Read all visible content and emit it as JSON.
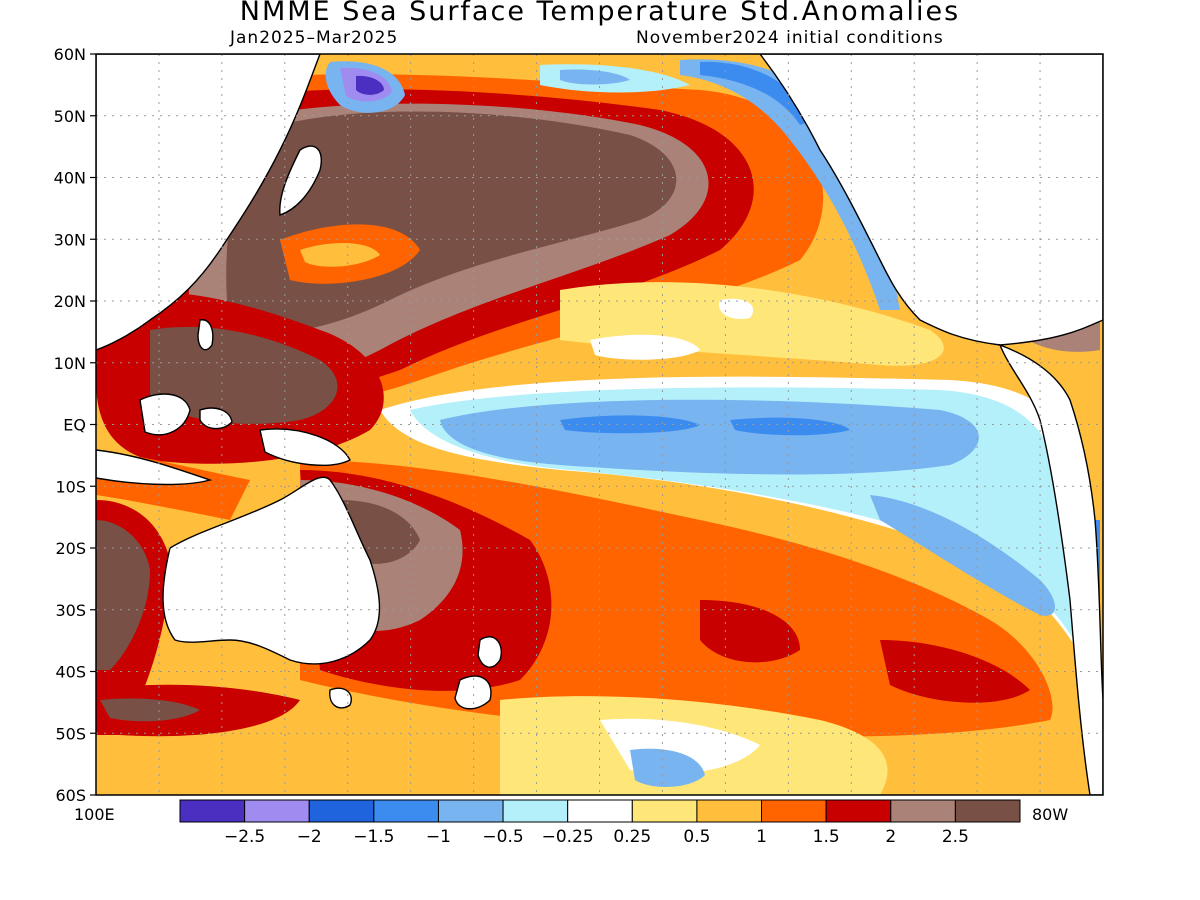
{
  "title": "NMME Sea Surface Temperature Std.Anomalies",
  "valid_period": "Jan2025–Mar2025",
  "init_conditions": "November2024 initial conditions",
  "lat_labels": [
    "60N",
    "50N",
    "40N",
    "30N",
    "20N",
    "10N",
    "EQ",
    "10S",
    "20S",
    "30S",
    "40S",
    "50S",
    "60S"
  ],
  "lon_labels": {
    "left": "100E",
    "right": "80W"
  },
  "colorbar": {
    "colors": [
      "#4a2fc0",
      "#a08cf0",
      "#1f64dc",
      "#3c8cf0",
      "#78b4f0",
      "#b4f0fa",
      "#ffffff",
      "#ffe678",
      "#ffbe3c",
      "#ff6400",
      "#c80000",
      "#aa8278",
      "#785046"
    ],
    "tick_labels": [
      "−2.5",
      "−2",
      "−1.5",
      "−1",
      "−0.5",
      "−0.25",
      "0.25",
      "0.5",
      "1",
      "1.5",
      "2",
      "2.5"
    ]
  },
  "legend_colors": {
    "land": "#ffffff",
    "coast": "#000000",
    "grid": "#999999"
  }
}
